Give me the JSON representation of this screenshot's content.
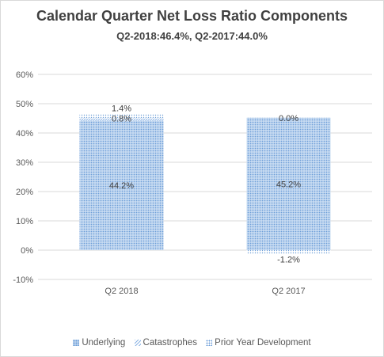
{
  "chart_data": {
    "type": "bar",
    "stacked": true,
    "title": "Calendar Quarter Net Loss Ratio Components",
    "subtitle": "Q2-2018:46.4%, Q2-2017:44.0%",
    "categories": [
      "Q2 2018",
      "Q2 2017"
    ],
    "series": [
      {
        "name": "Underlying",
        "values": [
          44.2,
          45.2
        ],
        "labels": [
          "44.2%",
          "45.2%"
        ],
        "color": "#9dc3ea"
      },
      {
        "name": "Catastrophes",
        "values": [
          0.8,
          0.0
        ],
        "labels": [
          "0.8%",
          "0.0%"
        ],
        "color": "#8bb3e4"
      },
      {
        "name": "Prior Year Development",
        "values": [
          1.4,
          -1.2
        ],
        "labels": [
          "1.4%",
          "-1.2%"
        ],
        "color": "#6f9fd8"
      }
    ],
    "ylim": [
      -10,
      60
    ],
    "yticks": [
      -10,
      0,
      10,
      20,
      30,
      40,
      50,
      60
    ],
    "ytick_labels": [
      "-10%",
      "0%",
      "10%",
      "20%",
      "30%",
      "40%",
      "50%",
      "60%"
    ],
    "xlabel": "",
    "ylabel": "",
    "grid": true,
    "legend_position": "bottom"
  }
}
